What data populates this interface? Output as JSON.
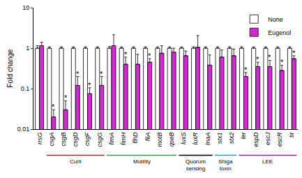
{
  "chart_data": {
    "type": "bar",
    "y_label": "Fold change",
    "log": "y",
    "ylim": [
      0.01,
      10
    ],
    "yticks": [
      0.01,
      0.1,
      1,
      10
    ],
    "legend": "top-right",
    "reference_line": 1,
    "tick_style": "italic",
    "categories": [
      "rrsG",
      "csgA",
      "csgB",
      "csgD",
      "csgF",
      "csgG",
      "fimA",
      "fimH",
      "flhD",
      "fliA",
      "motB",
      "qseB",
      "luxS",
      "luxR",
      "tnaA",
      "stx1",
      "stx2",
      "ler",
      "espD",
      "escJ",
      "escR",
      "tir"
    ],
    "series": [
      {
        "name": "None",
        "color": "#ffffff",
        "values": [
          1,
          1,
          1,
          1,
          1,
          1,
          1,
          1,
          1,
          1,
          1,
          1,
          1,
          1,
          1,
          1,
          1,
          1,
          1,
          1,
          1,
          1
        ],
        "errors": [
          0.15,
          0.08,
          0.08,
          0.08,
          0.08,
          0.08,
          0.1,
          0.08,
          0.08,
          0.08,
          0.08,
          0.08,
          0.08,
          0.08,
          0.08,
          0.08,
          0.08,
          0.08,
          0.08,
          0.08,
          0.08,
          0.08
        ]
      },
      {
        "name": "Eugenol",
        "color": "#d42ad4",
        "values": [
          1.15,
          0.02,
          0.03,
          0.12,
          0.075,
          0.12,
          1.15,
          0.4,
          0.4,
          0.45,
          0.75,
          0.8,
          0.65,
          1.05,
          0.38,
          0.6,
          0.65,
          0.2,
          0.35,
          0.35,
          0.28,
          0.55
        ],
        "errors": [
          0.25,
          0.01,
          0.02,
          0.08,
          0.03,
          0.08,
          1.0,
          0.2,
          0.3,
          0.1,
          0.4,
          0.2,
          0.2,
          1.0,
          0.3,
          0.3,
          0.3,
          0.05,
          0.1,
          0.15,
          0.1,
          0.1
        ],
        "significance": [
          null,
          "*",
          "*",
          "*",
          "*",
          "*",
          null,
          "*",
          null,
          "*",
          null,
          null,
          null,
          null,
          null,
          null,
          null,
          "*",
          "*",
          "*",
          "*",
          "*"
        ]
      }
    ],
    "groups": [
      {
        "label": "Curli",
        "color": "#b22222",
        "start": 1,
        "end": 5
      },
      {
        "label": "Motility",
        "color": "#2e9e3e",
        "start": 6,
        "end": 11
      },
      {
        "label": "Quorum\nsensing",
        "color": "#000000",
        "start": 12,
        "end": 14
      },
      {
        "label": "Shiga\ntoxin",
        "color": "#2a9fd6",
        "start": 15,
        "end": 16
      },
      {
        "label": "LEE",
        "color": "#a020a0",
        "start": 17,
        "end": 21
      }
    ]
  }
}
